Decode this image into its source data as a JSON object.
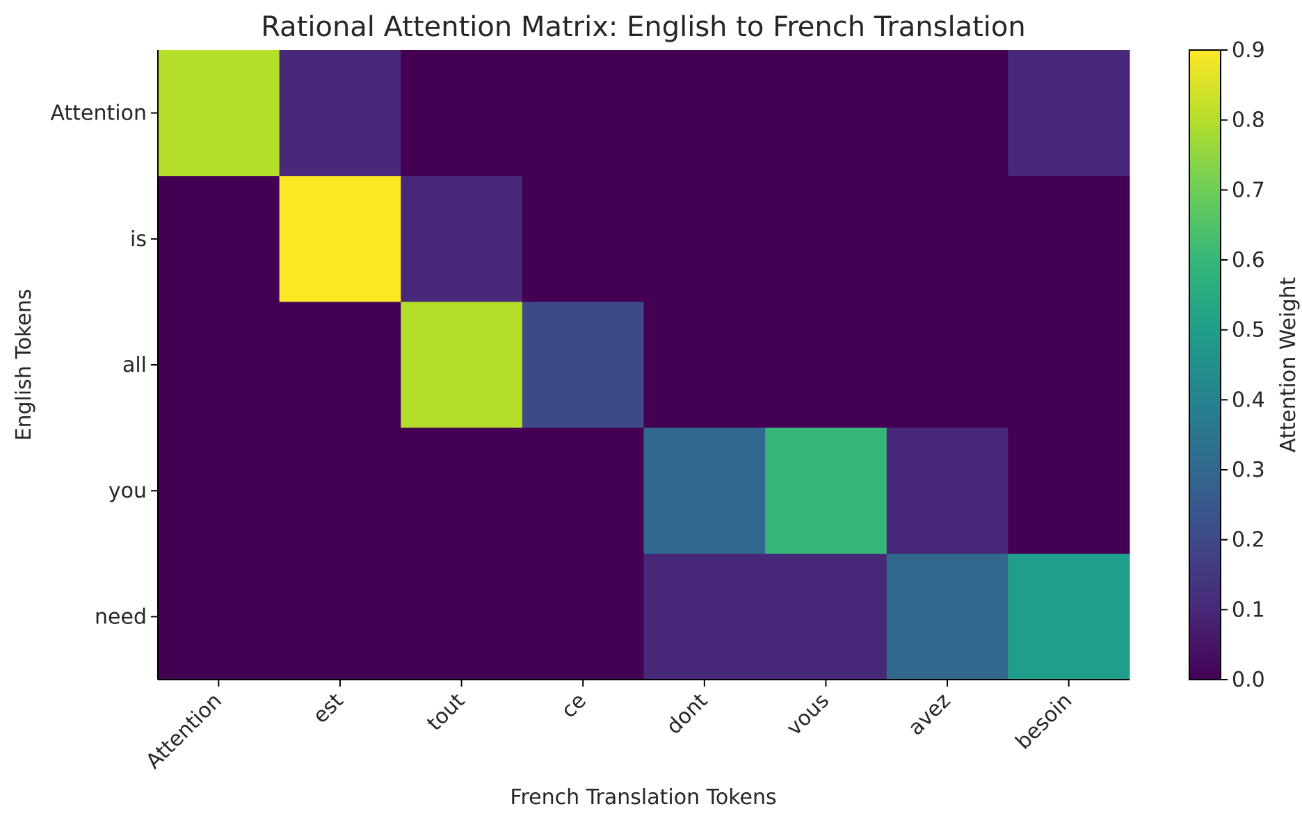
{
  "chart_data": {
    "type": "heatmap",
    "title": "Rational Attention Matrix: English to French Translation",
    "xlabel": "French Translation Tokens",
    "ylabel": "English Tokens",
    "x_categories": [
      "Attention",
      "est",
      "tout",
      "ce",
      "dont",
      "vous",
      "avez",
      "besoin"
    ],
    "y_categories": [
      "Attention",
      "is",
      "all",
      "you",
      "need"
    ],
    "values": [
      [
        0.8,
        0.1,
        0.0,
        0.0,
        0.0,
        0.0,
        0.0,
        0.1
      ],
      [
        0.0,
        0.9,
        0.1,
        0.0,
        0.0,
        0.0,
        0.0,
        0.0
      ],
      [
        0.0,
        0.0,
        0.8,
        0.2,
        0.0,
        0.0,
        0.0,
        0.0
      ],
      [
        0.0,
        0.0,
        0.0,
        0.0,
        0.3,
        0.6,
        0.1,
        0.0
      ],
      [
        0.0,
        0.0,
        0.0,
        0.0,
        0.1,
        0.1,
        0.3,
        0.5
      ]
    ],
    "colormap": "viridis",
    "colorbar": {
      "label": "Attention Weight",
      "range": [
        0.0,
        0.9
      ],
      "ticks": [
        "0.0",
        "0.1",
        "0.2",
        "0.3",
        "0.4",
        "0.5",
        "0.6",
        "0.7",
        "0.8",
        "0.9"
      ]
    },
    "grid": false
  }
}
